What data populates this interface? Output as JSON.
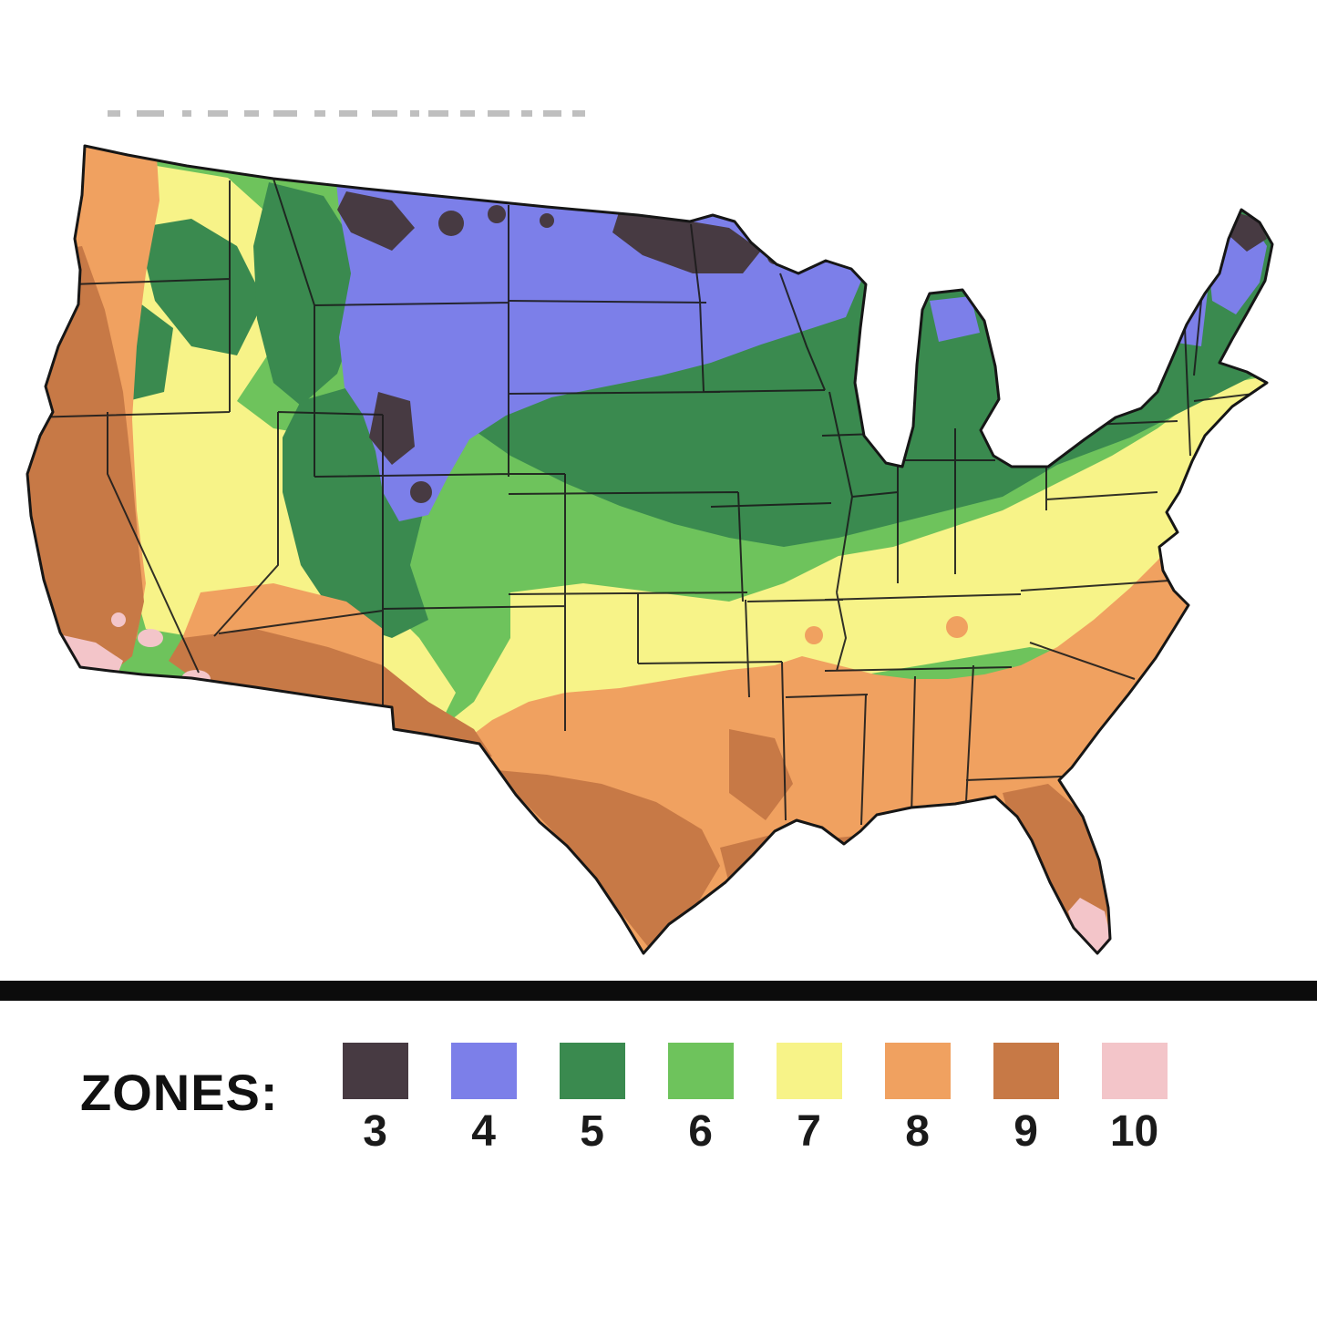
{
  "legend": {
    "title": "ZONES:",
    "zones": [
      {
        "label": "3",
        "color": "#473a42"
      },
      {
        "label": "4",
        "color": "#7c7fe9"
      },
      {
        "label": "5",
        "color": "#3a8a4f"
      },
      {
        "label": "6",
        "color": "#6ec35c"
      },
      {
        "label": "7",
        "color": "#f7f388"
      },
      {
        "label": "8",
        "color": "#f0a160"
      },
      {
        "label": "9",
        "color": "#c77946"
      },
      {
        "label": "10",
        "color": "#f3c5c9"
      }
    ]
  },
  "map": {
    "name": "us-plant-hardiness-zone-map",
    "background": "#ffffff",
    "outline_color": "#161616"
  }
}
